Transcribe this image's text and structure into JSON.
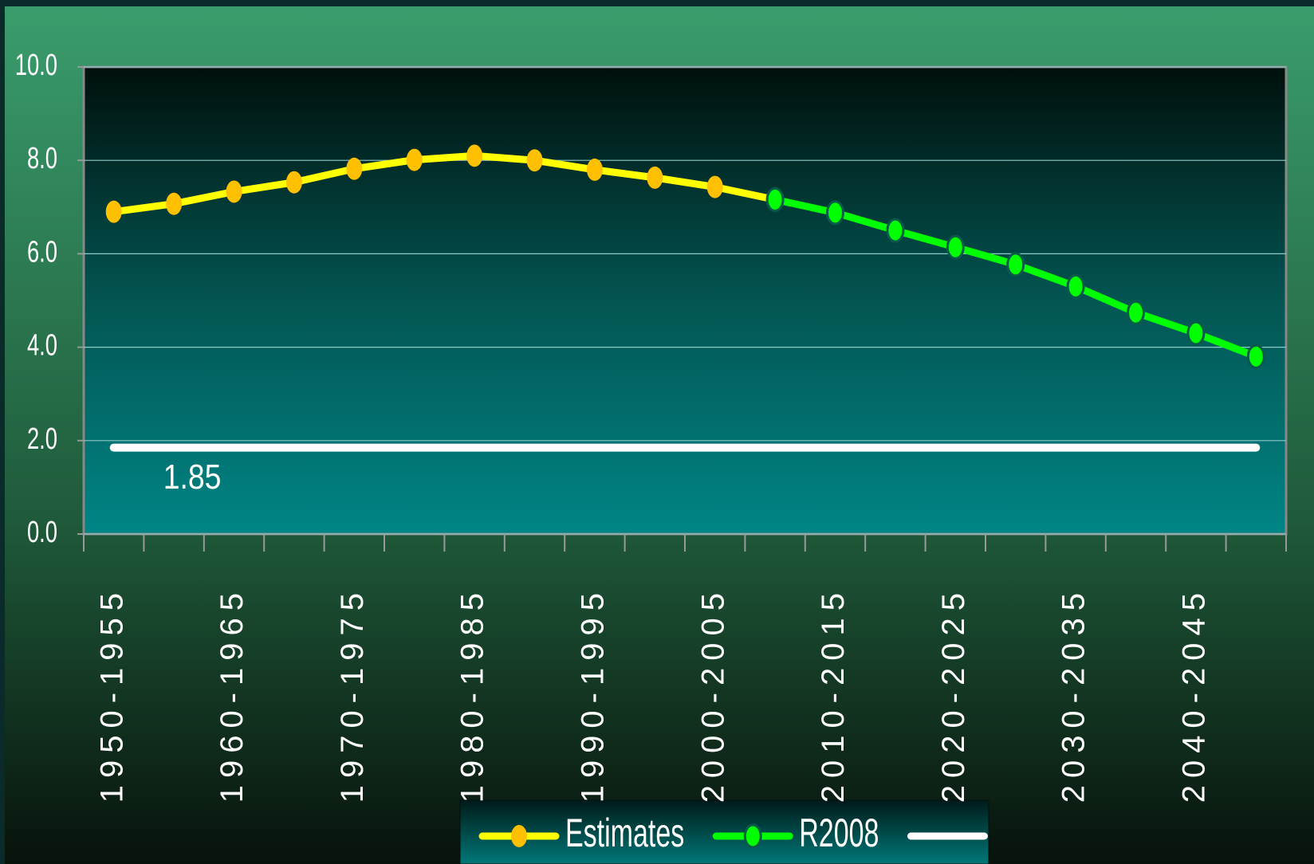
{
  "chart_data": {
    "type": "line",
    "categories": [
      "1950-1955",
      null,
      "1960-1965",
      null,
      "1970-1975",
      null,
      "1980-1985",
      null,
      "1990-1995",
      null,
      "2000-2005",
      null,
      "2010-2015",
      null,
      "2020-2025",
      null,
      "2030-2035",
      null,
      "2040-2045",
      null
    ],
    "series": [
      {
        "name": "Estimates",
        "color": "#ffff00",
        "marker_color": "#ffc000",
        "values": [
          6.9,
          7.07,
          7.33,
          7.53,
          7.82,
          8.01,
          8.1,
          8.0,
          7.8,
          7.63,
          7.43,
          7.16,
          null,
          null,
          null,
          null,
          null,
          null,
          null,
          null
        ]
      },
      {
        "name": "R2008",
        "color": "#00ff00",
        "marker_color": "#00ff00",
        "values": [
          null,
          null,
          null,
          null,
          null,
          null,
          null,
          null,
          null,
          null,
          null,
          7.16,
          6.88,
          6.5,
          6.14,
          5.77,
          5.3,
          4.74,
          4.3,
          3.8
        ]
      },
      {
        "color": "#ffffff",
        "values": [
          1.85,
          1.85,
          1.85,
          1.85,
          1.85,
          1.85,
          1.85,
          1.85,
          1.85,
          1.85,
          1.85,
          1.85,
          1.85,
          1.85,
          1.85,
          1.85,
          1.85,
          1.85,
          1.85,
          1.85
        ],
        "value_labels": [
          "1.85",
          null,
          null,
          null,
          null,
          null,
          null,
          null,
          null,
          null,
          null,
          null,
          null,
          null,
          null,
          null,
          null,
          null,
          null,
          null
        ]
      }
    ],
    "ylim": [
      0,
      10
    ],
    "yticks": [
      {
        "value": 0,
        "label": "0.0"
      },
      {
        "value": 2,
        "label": "2.0"
      },
      {
        "value": 4,
        "label": "4.0"
      },
      {
        "value": 6,
        "label": "6.0"
      },
      {
        "value": 8,
        "label": "8.0"
      },
      {
        "value": 10,
        "label": "10.0"
      }
    ],
    "grid": true,
    "legend": "bottom"
  }
}
